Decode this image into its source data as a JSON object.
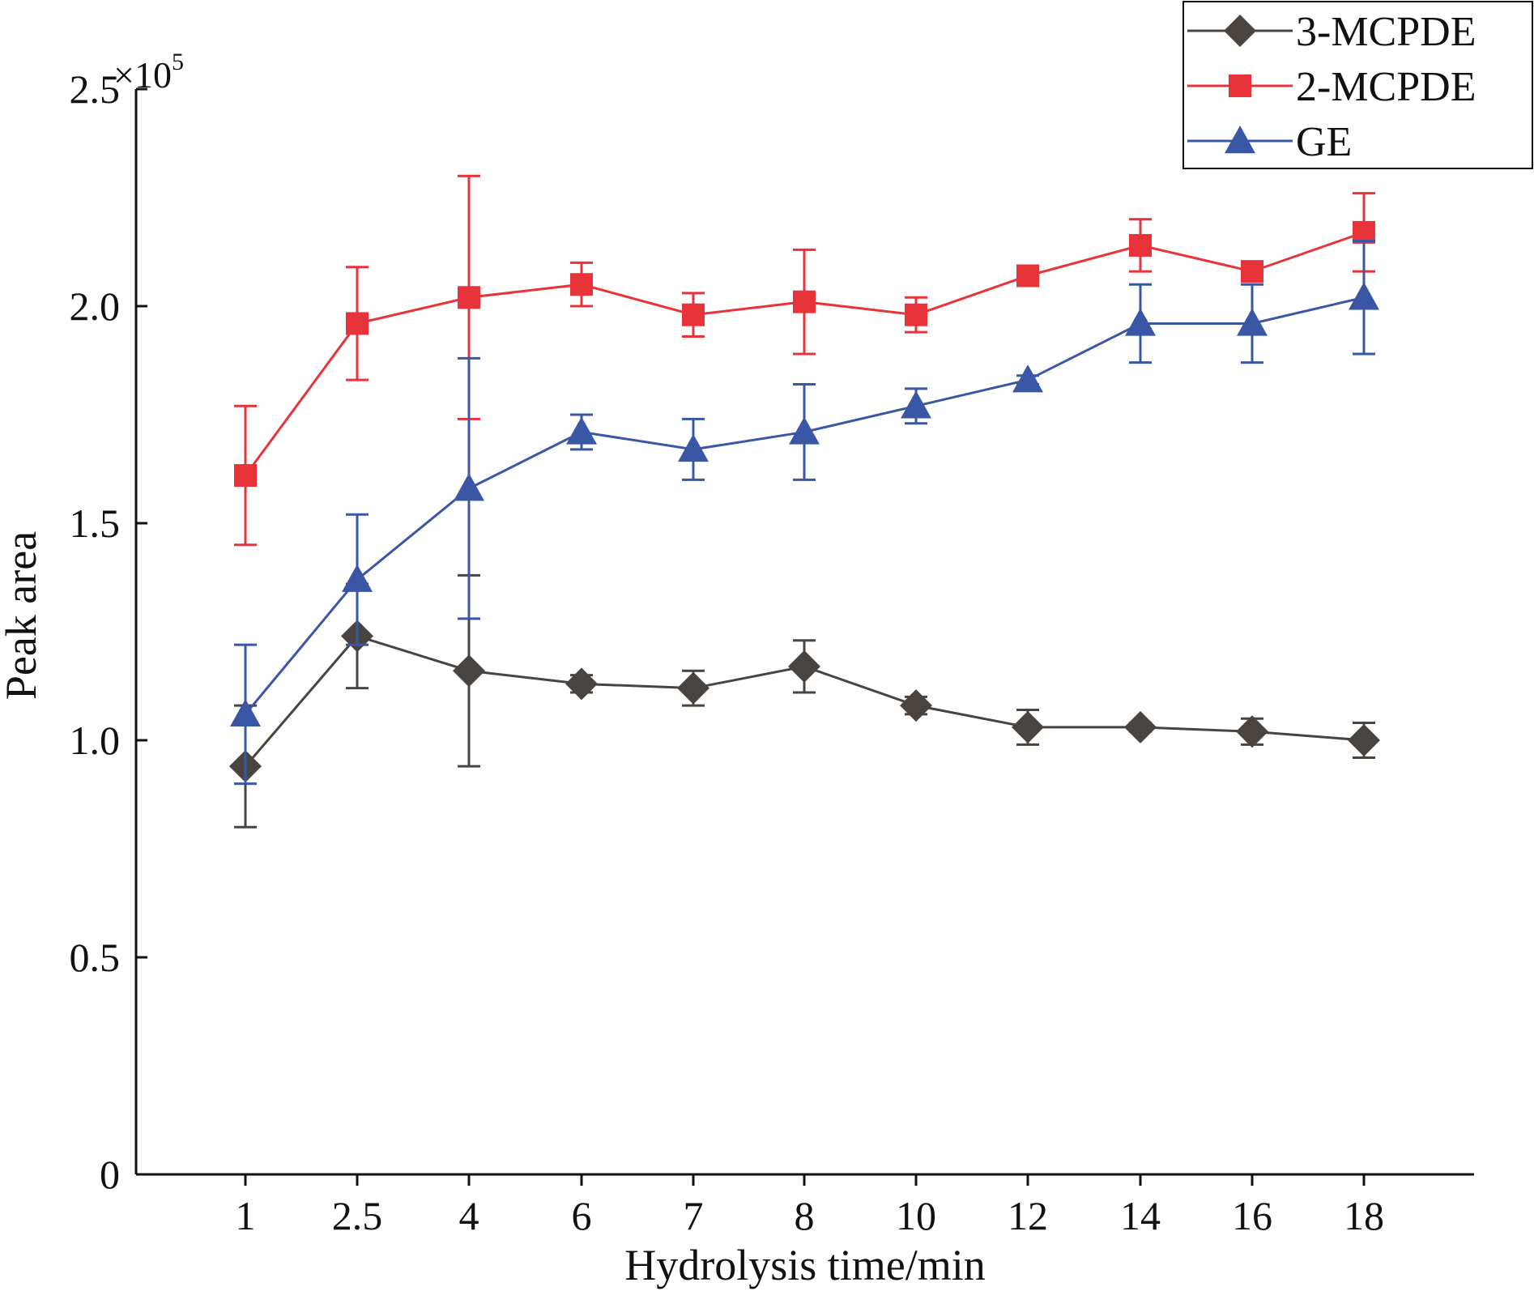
{
  "chart_data": {
    "type": "line",
    "xlabel": "Hydrolysis time/min",
    "ylabel": "Peak area",
    "y_multiplier": "×10",
    "y_multiplier_exp": "5",
    "categories": [
      "1",
      "2.5",
      "4",
      "6",
      "7",
      "8",
      "10",
      "12",
      "14",
      "16",
      "18"
    ],
    "ylim": [
      0,
      2.5
    ],
    "yticks": [
      0,
      0.5,
      1.0,
      1.5,
      2.0,
      2.5
    ],
    "ytick_labels": [
      "0",
      "0.5",
      "1.0",
      "1.5",
      "2.0",
      "2.5"
    ],
    "grid": false,
    "legend_position": "top-right",
    "series": [
      {
        "name": "3-MCPDE",
        "color": "#4a4440",
        "marker": "diamond",
        "values": [
          0.94,
          1.24,
          1.16,
          1.13,
          1.12,
          1.17,
          1.08,
          1.03,
          1.03,
          1.02,
          1.0
        ],
        "errors": [
          0.14,
          0.12,
          0.22,
          0.02,
          0.04,
          0.06,
          0.02,
          0.04,
          0.01,
          0.03,
          0.04
        ]
      },
      {
        "name": "2-MCPDE",
        "color": "#e8333a",
        "marker": "square",
        "values": [
          1.61,
          1.96,
          2.02,
          2.05,
          1.98,
          2.01,
          1.98,
          2.07,
          2.14,
          2.08,
          2.17
        ],
        "errors": [
          0.16,
          0.13,
          0.28,
          0.05,
          0.05,
          0.12,
          0.04,
          0.01,
          0.06,
          0.01,
          0.09
        ]
      },
      {
        "name": "GE",
        "color": "#3a57a6",
        "marker": "triangle",
        "values": [
          1.06,
          1.37,
          1.58,
          1.71,
          1.67,
          1.71,
          1.77,
          1.83,
          1.96,
          1.96,
          2.02
        ],
        "errors": [
          0.16,
          0.15,
          0.3,
          0.04,
          0.07,
          0.11,
          0.04,
          0.01,
          0.09,
          0.09,
          0.13
        ]
      }
    ]
  }
}
